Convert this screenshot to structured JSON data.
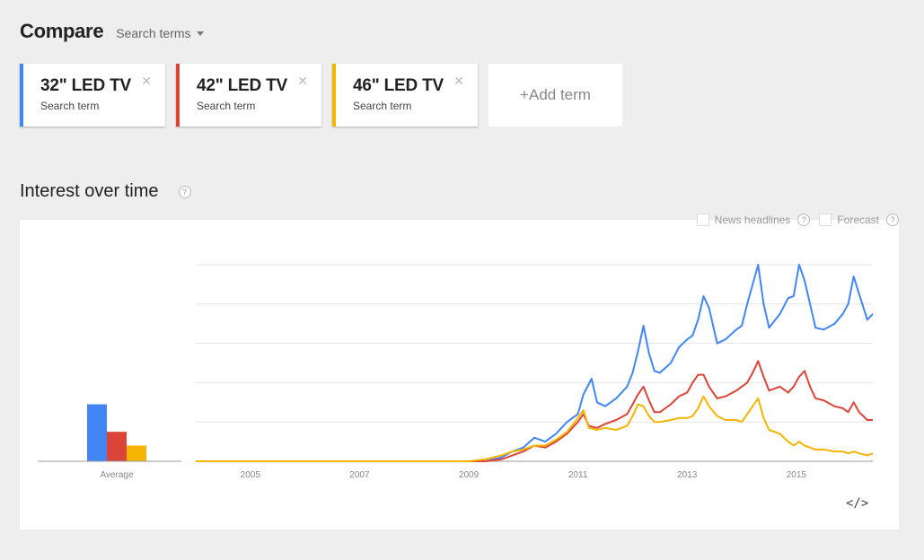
{
  "header": {
    "title": "Compare",
    "search_terms_label": "Search terms"
  },
  "terms": [
    {
      "name": "32\" LED TV",
      "type": "Search term",
      "color": "#4285f4"
    },
    {
      "name": "42\" LED TV",
      "type": "Search term",
      "color": "#db4437"
    },
    {
      "name": "46\" LED TV",
      "type": "Search term",
      "color": "#f4b400"
    }
  ],
  "add_term_label": "+Add term",
  "section_title": "Interest over time",
  "help_glyph": "?",
  "options": {
    "news_headlines": "News headlines",
    "forecast": "Forecast"
  },
  "embed_label": "</>",
  "chart_data": {
    "type": "line",
    "average": {
      "label": "Average",
      "values": [
        29,
        15,
        8
      ]
    },
    "x_ticks": [
      "2005",
      "2007",
      "2009",
      "2011",
      "2013",
      "2015"
    ],
    "ylim": [
      0,
      100
    ],
    "grid": true,
    "series": [
      {
        "name": "32\" LED TV",
        "color": "#4285f4",
        "points": [
          [
            2004.0,
            0
          ],
          [
            2009.0,
            0
          ],
          [
            2009.3,
            0
          ],
          [
            2009.6,
            2
          ],
          [
            2009.8,
            5
          ],
          [
            2010.0,
            7
          ],
          [
            2010.2,
            12
          ],
          [
            2010.4,
            10
          ],
          [
            2010.6,
            14
          ],
          [
            2010.8,
            20
          ],
          [
            2011.0,
            24
          ],
          [
            2011.1,
            34
          ],
          [
            2011.25,
            42
          ],
          [
            2011.35,
            30
          ],
          [
            2011.5,
            28
          ],
          [
            2011.7,
            32
          ],
          [
            2011.9,
            38
          ],
          [
            2012.0,
            45
          ],
          [
            2012.1,
            56
          ],
          [
            2012.2,
            69
          ],
          [
            2012.3,
            55
          ],
          [
            2012.4,
            46
          ],
          [
            2012.5,
            45
          ],
          [
            2012.7,
            50
          ],
          [
            2012.85,
            58
          ],
          [
            2013.0,
            62
          ],
          [
            2013.1,
            64
          ],
          [
            2013.2,
            72
          ],
          [
            2013.3,
            84
          ],
          [
            2013.4,
            78
          ],
          [
            2013.55,
            60
          ],
          [
            2013.7,
            62
          ],
          [
            2013.9,
            67
          ],
          [
            2014.0,
            69
          ],
          [
            2014.1,
            80
          ],
          [
            2014.2,
            90
          ],
          [
            2014.3,
            100
          ],
          [
            2014.4,
            80
          ],
          [
            2014.5,
            68
          ],
          [
            2014.7,
            75
          ],
          [
            2014.85,
            83
          ],
          [
            2014.95,
            84
          ],
          [
            2015.05,
            100
          ],
          [
            2015.15,
            92
          ],
          [
            2015.25,
            80
          ],
          [
            2015.35,
            68
          ],
          [
            2015.5,
            67
          ],
          [
            2015.7,
            70
          ],
          [
            2015.85,
            75
          ],
          [
            2015.95,
            80
          ],
          [
            2016.05,
            94
          ],
          [
            2016.15,
            85
          ],
          [
            2016.3,
            72
          ],
          [
            2016.4,
            75
          ]
        ]
      },
      {
        "name": "42\" LED TV",
        "color": "#db4437",
        "points": [
          [
            2004.0,
            0
          ],
          [
            2009.0,
            0
          ],
          [
            2009.3,
            0
          ],
          [
            2009.6,
            1
          ],
          [
            2009.8,
            3
          ],
          [
            2010.0,
            5
          ],
          [
            2010.2,
            8
          ],
          [
            2010.4,
            7
          ],
          [
            2010.6,
            10
          ],
          [
            2010.8,
            14
          ],
          [
            2011.0,
            20
          ],
          [
            2011.1,
            24
          ],
          [
            2011.2,
            18
          ],
          [
            2011.35,
            17
          ],
          [
            2011.5,
            19
          ],
          [
            2011.7,
            21
          ],
          [
            2011.9,
            24
          ],
          [
            2012.0,
            29
          ],
          [
            2012.1,
            34
          ],
          [
            2012.2,
            38
          ],
          [
            2012.3,
            31
          ],
          [
            2012.4,
            25
          ],
          [
            2012.5,
            25
          ],
          [
            2012.7,
            29
          ],
          [
            2012.85,
            33
          ],
          [
            2013.0,
            35
          ],
          [
            2013.1,
            40
          ],
          [
            2013.2,
            44
          ],
          [
            2013.3,
            44
          ],
          [
            2013.4,
            38
          ],
          [
            2013.55,
            32
          ],
          [
            2013.7,
            33
          ],
          [
            2013.9,
            36
          ],
          [
            2014.0,
            38
          ],
          [
            2014.1,
            40
          ],
          [
            2014.2,
            45
          ],
          [
            2014.3,
            51
          ],
          [
            2014.4,
            43
          ],
          [
            2014.5,
            36
          ],
          [
            2014.7,
            38
          ],
          [
            2014.85,
            35
          ],
          [
            2014.95,
            38
          ],
          [
            2015.05,
            43
          ],
          [
            2015.15,
            46
          ],
          [
            2015.25,
            38
          ],
          [
            2015.35,
            32
          ],
          [
            2015.5,
            31
          ],
          [
            2015.7,
            28
          ],
          [
            2015.85,
            27
          ],
          [
            2015.95,
            25
          ],
          [
            2016.05,
            30
          ],
          [
            2016.15,
            25
          ],
          [
            2016.3,
            21
          ],
          [
            2016.4,
            21
          ]
        ]
      },
      {
        "name": "46\" LED TV",
        "color": "#f4b400",
        "points": [
          [
            2004.0,
            0
          ],
          [
            2009.0,
            0
          ],
          [
            2009.3,
            1
          ],
          [
            2009.6,
            3
          ],
          [
            2009.8,
            5
          ],
          [
            2010.0,
            6
          ],
          [
            2010.2,
            8
          ],
          [
            2010.4,
            8
          ],
          [
            2010.6,
            11
          ],
          [
            2010.8,
            15
          ],
          [
            2011.0,
            22
          ],
          [
            2011.1,
            26
          ],
          [
            2011.2,
            17
          ],
          [
            2011.35,
            16
          ],
          [
            2011.5,
            17
          ],
          [
            2011.7,
            16
          ],
          [
            2011.9,
            18
          ],
          [
            2012.0,
            23
          ],
          [
            2012.1,
            29
          ],
          [
            2012.2,
            28
          ],
          [
            2012.3,
            23
          ],
          [
            2012.4,
            20
          ],
          [
            2012.5,
            20
          ],
          [
            2012.7,
            21
          ],
          [
            2012.85,
            22
          ],
          [
            2013.0,
            22
          ],
          [
            2013.1,
            23
          ],
          [
            2013.2,
            27
          ],
          [
            2013.3,
            33
          ],
          [
            2013.4,
            28
          ],
          [
            2013.55,
            23
          ],
          [
            2013.7,
            21
          ],
          [
            2013.9,
            21
          ],
          [
            2014.0,
            20
          ],
          [
            2014.1,
            24
          ],
          [
            2014.2,
            28
          ],
          [
            2014.3,
            32
          ],
          [
            2014.4,
            22
          ],
          [
            2014.5,
            16
          ],
          [
            2014.7,
            14
          ],
          [
            2014.85,
            10
          ],
          [
            2014.95,
            8
          ],
          [
            2015.05,
            10
          ],
          [
            2015.15,
            8
          ],
          [
            2015.25,
            7
          ],
          [
            2015.35,
            6
          ],
          [
            2015.5,
            6
          ],
          [
            2015.7,
            5
          ],
          [
            2015.85,
            5
          ],
          [
            2015.95,
            4
          ],
          [
            2016.05,
            5
          ],
          [
            2016.15,
            4
          ],
          [
            2016.3,
            3
          ],
          [
            2016.4,
            4
          ]
        ]
      }
    ]
  }
}
